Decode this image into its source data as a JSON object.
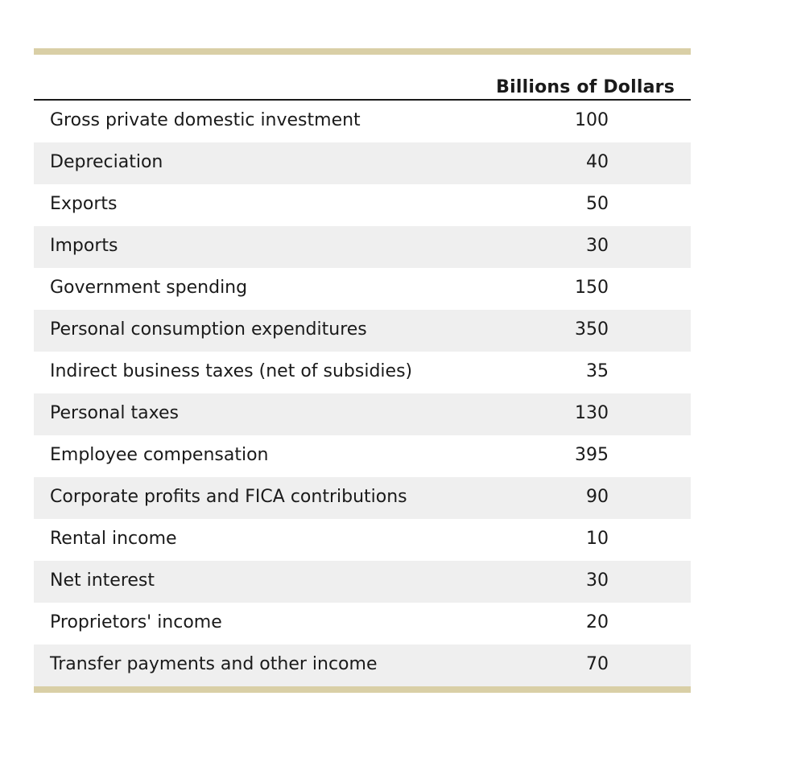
{
  "table": {
    "header": "Billions of Dollars",
    "rows": [
      {
        "label": "Gross private domestic investment",
        "value": "100"
      },
      {
        "label": "Depreciation",
        "value": "40"
      },
      {
        "label": "Exports",
        "value": "50"
      },
      {
        "label": "Imports",
        "value": "30"
      },
      {
        "label": "Government spending",
        "value": "150"
      },
      {
        "label": "Personal consumption expenditures",
        "value": "350"
      },
      {
        "label": "Indirect business taxes (net of subsidies)",
        "value": "35"
      },
      {
        "label": "Personal taxes",
        "value": "130"
      },
      {
        "label": "Employee compensation",
        "value": "395"
      },
      {
        "label": "Corporate profits and FICA contributions",
        "value": "90"
      },
      {
        "label": "Rental income",
        "value": "10"
      },
      {
        "label": "Net interest",
        "value": "30"
      },
      {
        "label": "Proprietors' income",
        "value": "20"
      },
      {
        "label": "Transfer payments and other income",
        "value": "70"
      }
    ]
  }
}
